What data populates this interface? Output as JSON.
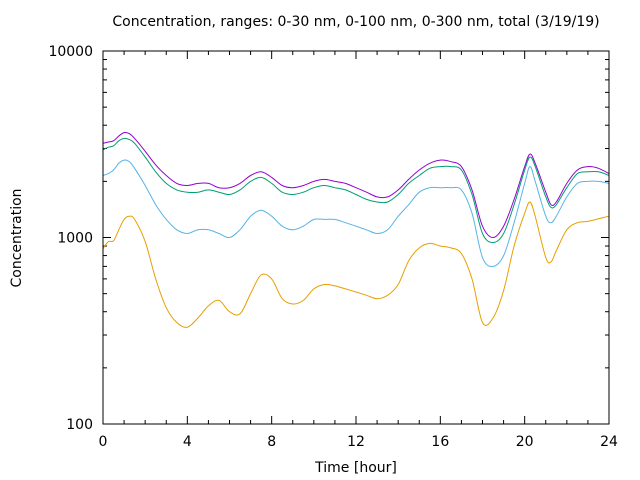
{
  "chart_data": {
    "type": "line",
    "title": "Concentration, ranges: 0-30 nm, 0-100 nm, 0-300 nm, total (3/19/19)",
    "xlabel": "Time [hour]",
    "ylabel": "Concentration",
    "xlim": [
      0,
      24
    ],
    "ylim": [
      100,
      10000
    ],
    "yscale": "log",
    "grid": false,
    "legend": "none",
    "x_ticks": [
      "0",
      "4",
      "8",
      "12",
      "16",
      "20",
      "24"
    ],
    "y_ticks": [
      "100",
      "1000",
      "10000"
    ],
    "x_tick_values": [
      0,
      4,
      8,
      12,
      16,
      20,
      24
    ],
    "y_tick_values": [
      100,
      1000,
      10000
    ],
    "x": [
      0,
      0.25,
      0.5,
      0.75,
      1.0,
      1.25,
      1.5,
      2.0,
      2.5,
      3.0,
      3.5,
      4.0,
      4.5,
      5.0,
      5.5,
      6.0,
      6.5,
      7.0,
      7.5,
      8.0,
      8.5,
      9.0,
      9.5,
      10.0,
      10.5,
      11.0,
      11.5,
      12.0,
      12.5,
      13.0,
      13.5,
      14.0,
      14.5,
      15.0,
      15.5,
      16.0,
      16.5,
      17.0,
      17.5,
      18.0,
      18.5,
      19.0,
      19.5,
      20.0,
      20.25,
      20.5,
      21.0,
      21.25,
      21.5,
      22.0,
      22.5,
      23.0,
      23.5,
      24.0
    ],
    "series": [
      {
        "name": "total",
        "color": "#9400d3",
        "values": [
          3200,
          3250,
          3300,
          3500,
          3650,
          3600,
          3400,
          2900,
          2450,
          2150,
          1950,
          1900,
          1950,
          1950,
          1850,
          1850,
          1950,
          2150,
          2250,
          2100,
          1900,
          1850,
          1900,
          2000,
          2050,
          2000,
          1950,
          1850,
          1750,
          1650,
          1650,
          1800,
          2050,
          2300,
          2500,
          2600,
          2550,
          2400,
          1800,
          1150,
          1000,
          1150,
          1600,
          2400,
          2800,
          2500,
          1750,
          1500,
          1550,
          1950,
          2300,
          2400,
          2350,
          2200
        ]
      },
      {
        "name": "0-300 nm",
        "color": "#009e73",
        "values": [
          2950,
          3050,
          3100,
          3300,
          3400,
          3350,
          3200,
          2700,
          2250,
          1950,
          1800,
          1750,
          1750,
          1800,
          1750,
          1700,
          1800,
          2000,
          2100,
          1950,
          1750,
          1700,
          1750,
          1850,
          1900,
          1850,
          1800,
          1700,
          1600,
          1550,
          1550,
          1700,
          1950,
          2150,
          2350,
          2400,
          2400,
          2300,
          1700,
          1050,
          940,
          1050,
          1500,
          2300,
          2700,
          2400,
          1650,
          1450,
          1500,
          1850,
          2200,
          2250,
          2250,
          2150
        ]
      },
      {
        "name": "0-100 nm",
        "color": "#56b4e9",
        "values": [
          2150,
          2200,
          2300,
          2500,
          2600,
          2550,
          2350,
          1900,
          1500,
          1250,
          1100,
          1050,
          1100,
          1100,
          1050,
          1000,
          1100,
          1300,
          1400,
          1300,
          1150,
          1100,
          1150,
          1250,
          1250,
          1250,
          1200,
          1150,
          1100,
          1050,
          1100,
          1300,
          1500,
          1750,
          1850,
          1850,
          1850,
          1800,
          1350,
          780,
          700,
          800,
          1200,
          1950,
          2400,
          2000,
          1300,
          1200,
          1300,
          1650,
          1950,
          2000,
          2000,
          1950
        ]
      },
      {
        "name": "0-30 nm",
        "color": "#e69f00",
        "values": [
          870,
          950,
          960,
          1100,
          1250,
          1300,
          1250,
          950,
          600,
          420,
          350,
          330,
          370,
          430,
          460,
          400,
          390,
          500,
          630,
          600,
          470,
          440,
          460,
          530,
          560,
          550,
          530,
          510,
          490,
          470,
          490,
          560,
          750,
          880,
          930,
          900,
          880,
          820,
          600,
          350,
          370,
          520,
          900,
          1350,
          1550,
          1300,
          780,
          740,
          850,
          1100,
          1200,
          1220,
          1260,
          1300
        ]
      }
    ]
  }
}
